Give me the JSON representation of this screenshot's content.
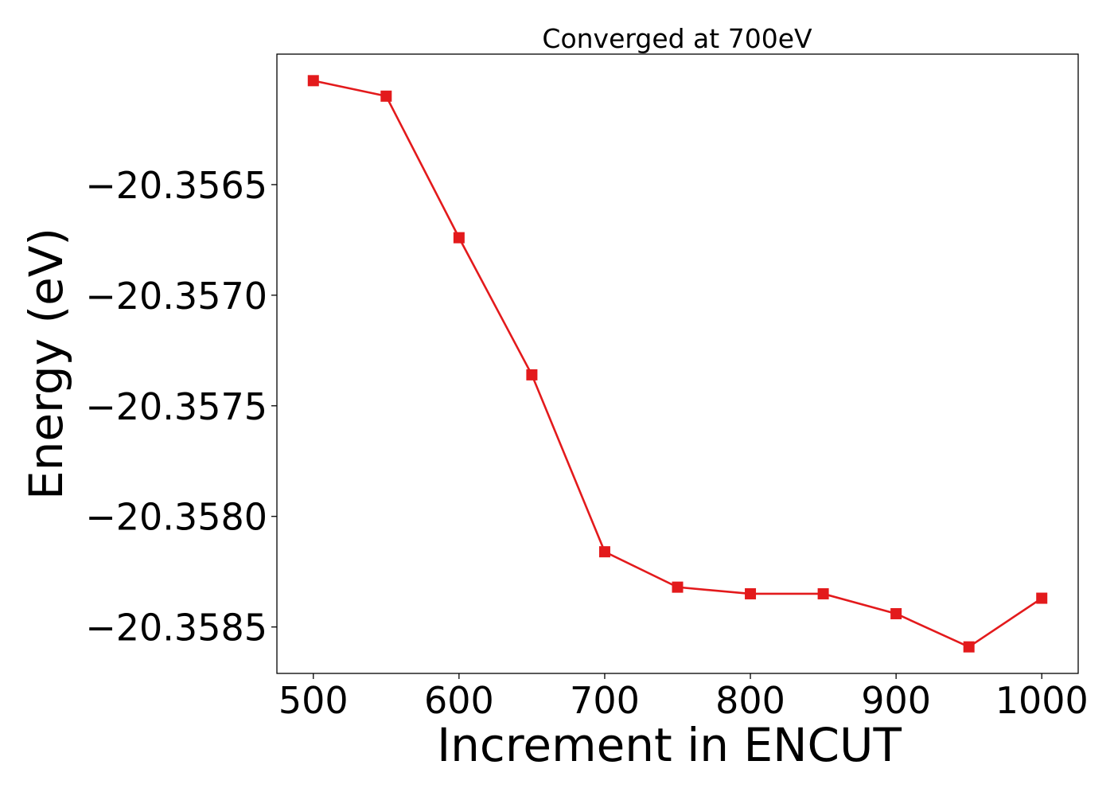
{
  "chart_data": {
    "type": "line",
    "title": "Converged at 700eV",
    "xlabel": "Increment in ENCUT",
    "ylabel": "Energy (eV)",
    "x": [
      500,
      550,
      600,
      650,
      700,
      750,
      800,
      850,
      900,
      950,
      1000
    ],
    "series": [
      {
        "values": [
          -20.35603,
          -20.3561,
          -20.35674,
          -20.35736,
          -20.35816,
          -20.35832,
          -20.35835,
          -20.35835,
          -20.35844,
          -20.35859,
          -20.35837
        ]
      }
    ],
    "xticks": [
      500,
      600,
      700,
      800,
      900,
      1000
    ],
    "xtick_labels": [
      "500",
      "600",
      "700",
      "800",
      "900",
      "1000"
    ],
    "yticks": [
      -20.3565,
      -20.357,
      -20.3575,
      -20.358,
      -20.3585
    ],
    "ytick_labels": [
      "−20.3565",
      "−20.3570",
      "−20.3575",
      "−20.3580",
      "−20.3585"
    ],
    "xlim": [
      475,
      1025
    ],
    "ylim": [
      -20.35871,
      -20.35591
    ],
    "grid": false,
    "colors": {
      "line": "#e31a1c",
      "marker": "#e31a1c",
      "axes": "#000000"
    },
    "marker": "square"
  }
}
